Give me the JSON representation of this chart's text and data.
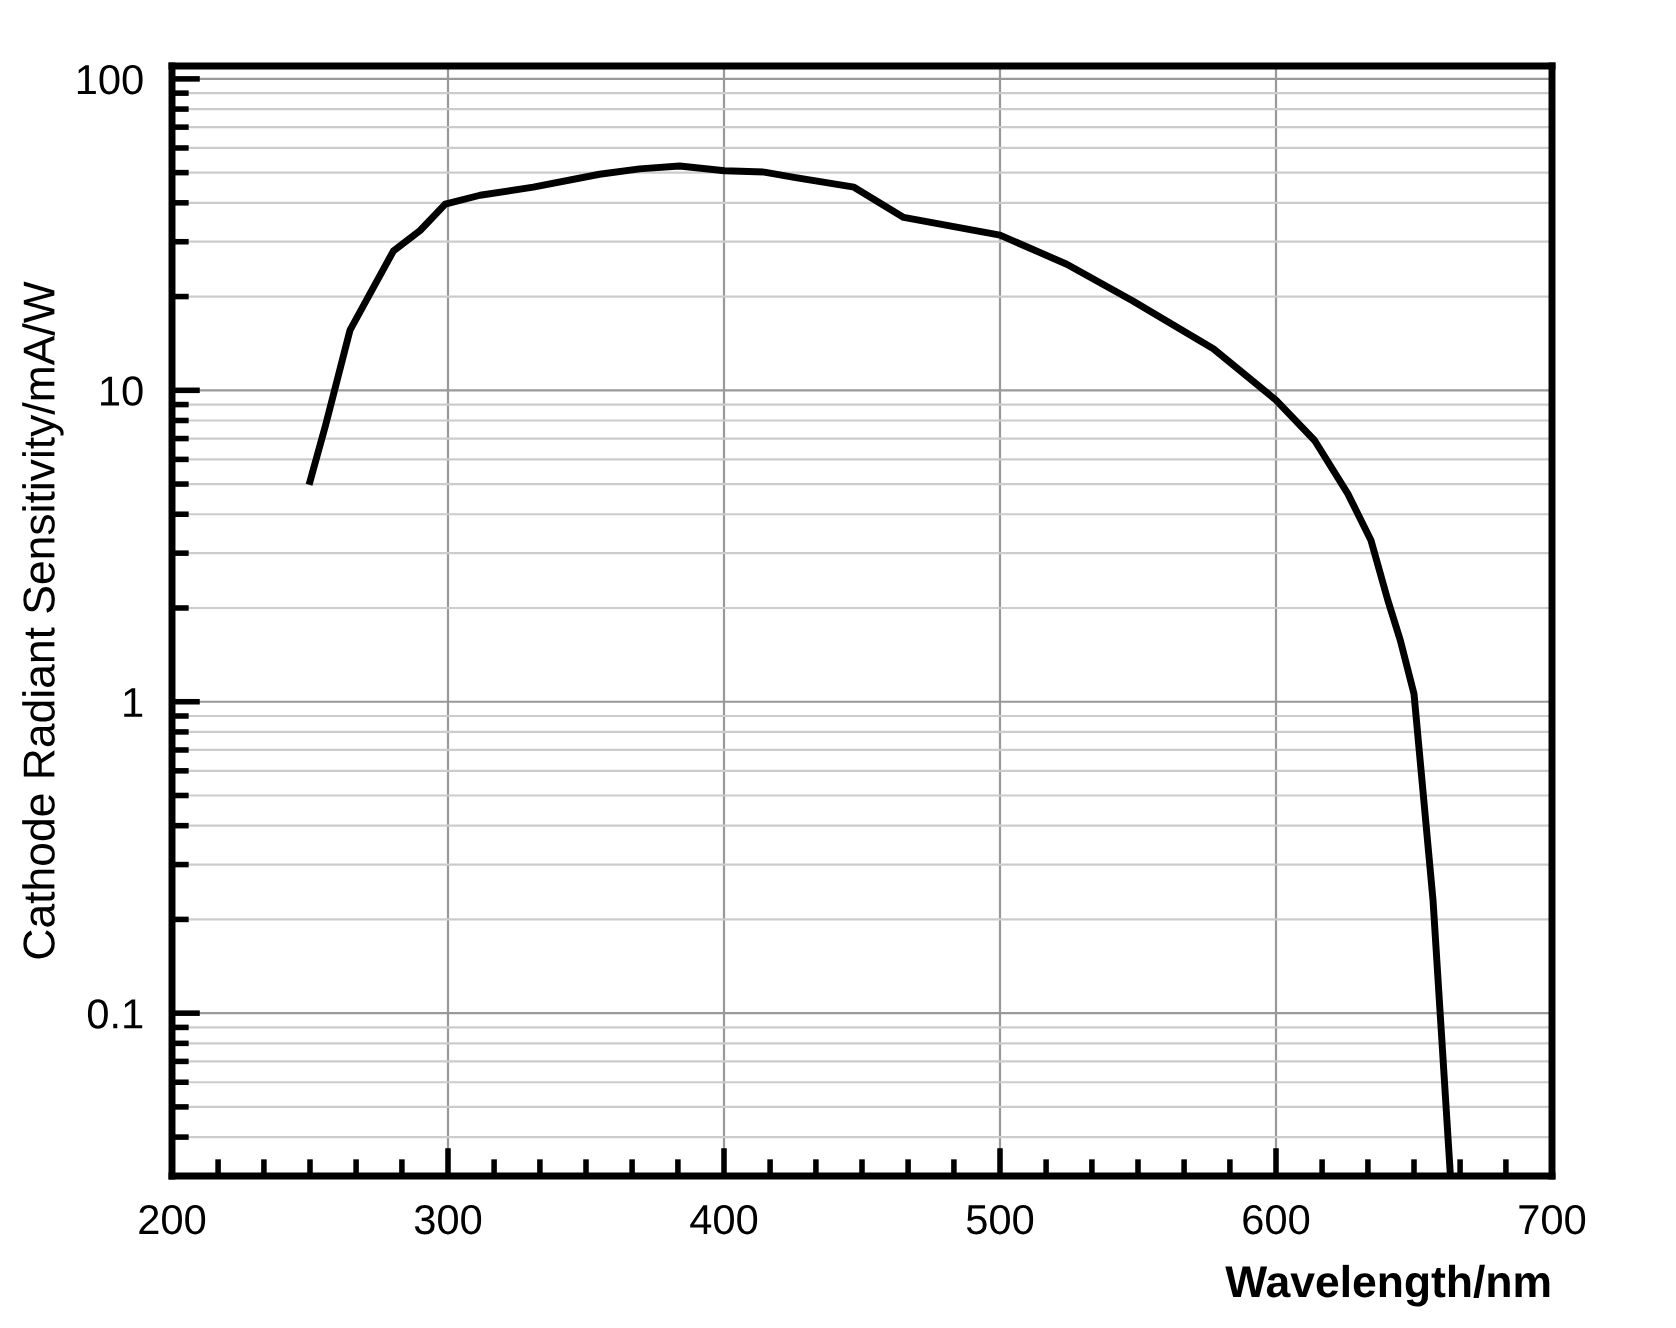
{
  "chart_data": {
    "type": "line",
    "xlabel": "Wavelength/nm",
    "ylabel": "Cathode Radiant Sensitivity/mA/W",
    "log": "y",
    "grid": true,
    "line_style": "solid",
    "marker": "none",
    "xlim": [
      200,
      700
    ],
    "ylim": [
      0.03,
      110
    ],
    "xticks": [
      200,
      {
        "value": 216.7,
        "label": null
      },
      {
        "value": 233.3,
        "label": null
      },
      {
        "value": 250,
        "label": null
      },
      {
        "value": 266.7,
        "label": null
      },
      {
        "value": 283.3,
        "label": null
      },
      300,
      {
        "value": 316.7,
        "label": null
      },
      {
        "value": 333.3,
        "label": null
      },
      {
        "value": 350,
        "label": null
      },
      {
        "value": 366.7,
        "label": null
      },
      {
        "value": 383.3,
        "label": null
      },
      400,
      {
        "value": 416.7,
        "label": null
      },
      {
        "value": 433.3,
        "label": null
      },
      {
        "value": 450,
        "label": null
      },
      {
        "value": 466.7,
        "label": null
      },
      {
        "value": 483.3,
        "label": null
      },
      500,
      {
        "value": 516.7,
        "label": null
      },
      {
        "value": 533.3,
        "label": null
      },
      {
        "value": 550,
        "label": null
      },
      {
        "value": 566.7,
        "label": null
      },
      {
        "value": 583.3,
        "label": null
      },
      600,
      {
        "value": 616.7,
        "label": null
      },
      {
        "value": 633.3,
        "label": null
      },
      {
        "value": 650,
        "label": null
      },
      {
        "value": 666.7,
        "label": null
      },
      {
        "value": 683.3,
        "label": null
      },
      700
    ],
    "yticks": [
      {
        "value": 0.03,
        "label": null
      },
      {
        "value": 0.04,
        "label": null
      },
      {
        "value": 0.05,
        "label": null
      },
      {
        "value": 0.06,
        "label": null
      },
      {
        "value": 0.07,
        "label": null
      },
      {
        "value": 0.08,
        "label": null
      },
      {
        "value": 0.09,
        "label": null
      },
      0.1,
      {
        "value": 0.2,
        "label": null
      },
      {
        "value": 0.3,
        "label": null
      },
      {
        "value": 0.4,
        "label": null
      },
      {
        "value": 0.5,
        "label": null
      },
      {
        "value": 0.6,
        "label": null
      },
      {
        "value": 0.7,
        "label": null
      },
      {
        "value": 0.8,
        "label": null
      },
      {
        "value": 0.9,
        "label": null
      },
      1,
      {
        "value": 2,
        "label": null
      },
      {
        "value": 3,
        "label": null
      },
      {
        "value": 4,
        "label": null
      },
      {
        "value": 5,
        "label": null
      },
      {
        "value": 6,
        "label": null
      },
      {
        "value": 7,
        "label": null
      },
      {
        "value": 8,
        "label": null
      },
      {
        "value": 9,
        "label": null
      },
      10,
      {
        "value": 20,
        "label": null
      },
      {
        "value": 30,
        "label": null
      },
      {
        "value": 40,
        "label": null
      },
      {
        "value": 50,
        "label": null
      },
      {
        "value": 60,
        "label": null
      },
      {
        "value": 70,
        "label": null
      },
      {
        "value": 80,
        "label": null
      },
      {
        "value": 90,
        "label": null
      },
      100
    ],
    "series": [
      {
        "color": "#000000",
        "x": [
          250,
          255.6,
          264.5,
          271.7,
          280.2,
          289.9,
          299,
          311.6,
          330.9,
          354.9,
          369.4,
          383.9,
          400.2,
          414.6,
          425.4,
          447.1,
          465.1,
          500,
          524.2,
          548,
          577.3,
          600,
          614,
          626,
          634.4,
          640.5,
          645,
          650,
          656.9,
          663.1
        ],
        "values": [
          5.1,
          7.7,
          15.6,
          20.4,
          28,
          32.6,
          39.6,
          42.3,
          44.9,
          49.4,
          51.4,
          52.5,
          50.7,
          50.2,
          48.3,
          44.9,
          35.9,
          31.5,
          25.4,
          19.4,
          13.6,
          9.3,
          6.9,
          4.66,
          3.3,
          2.12,
          1.58,
          1.06,
          0.23,
          0.031
        ]
      }
    ]
  }
}
